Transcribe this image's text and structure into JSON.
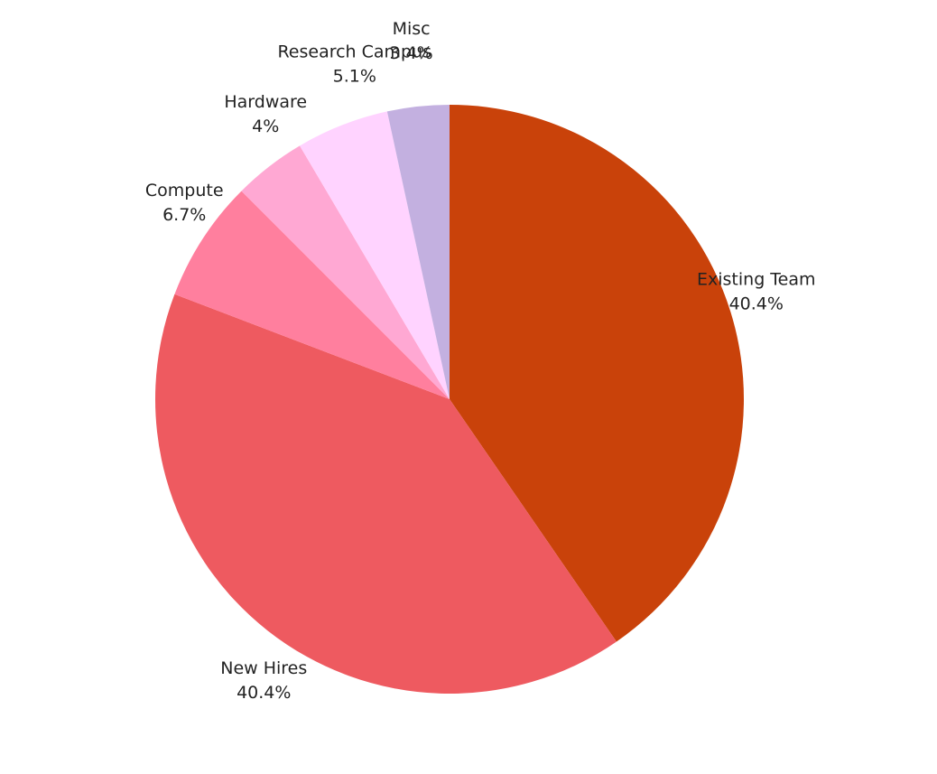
{
  "chart_data": {
    "type": "pie",
    "categories": [
      "Existing Team",
      "New Hires",
      "Compute",
      "Hardware",
      "Research Campus",
      "Misc"
    ],
    "values": [
      40.4,
      40.4,
      6.7,
      4,
      5.1,
      3.4
    ],
    "value_labels": [
      "40.4%",
      "40.4%",
      "6.7%",
      "4%",
      "5.1%",
      "3.4%"
    ],
    "colors": [
      "#c9420a",
      "#ee5a60",
      "#ff7f9e",
      "#ffa8d3",
      "#ffd3ff",
      "#c3b0e0"
    ]
  }
}
